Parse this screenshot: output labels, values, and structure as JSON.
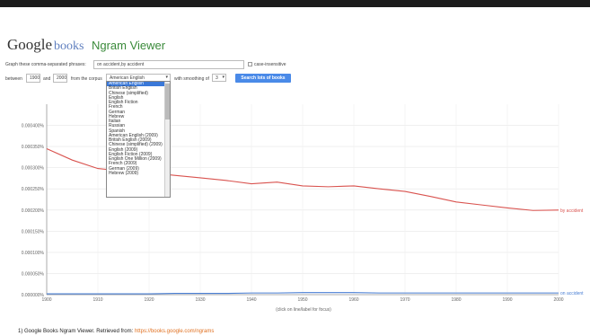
{
  "app": {
    "logo_google": "Google",
    "logo_books": "books",
    "title": "Ngram Viewer"
  },
  "form": {
    "graph_label": "Graph these comma-separated phrases:",
    "query_value": "on accident,by accident",
    "case_insensitive_label": "case-insensitive",
    "between_label": "between",
    "year_start": "1900",
    "and_label": "and",
    "year_end": "2000",
    "from_corpus_label": "from the corpus",
    "corpus_selected": "American English",
    "smoothing_label": "with smoothing of",
    "smoothing_value": "3",
    "search_button": "Search lots of books"
  },
  "corpus_options": [
    "American English",
    "British English",
    "Chinese (simplified)",
    "English",
    "English Fiction",
    "French",
    "German",
    "Hebrew",
    "Italian",
    "Russian",
    "Spanish",
    "American English (2009)",
    "British English (2009)",
    "Chinese (simplified) (2009)",
    "English (2009)",
    "English Fiction (2009)",
    "English One Million (2009)",
    "French (2009)",
    "German (2009)",
    "Hebrew (2009)"
  ],
  "chart_data": {
    "type": "line",
    "x": [
      1900,
      1905,
      1910,
      1915,
      1920,
      1925,
      1930,
      1935,
      1940,
      1945,
      1950,
      1955,
      1960,
      1965,
      1970,
      1975,
      1980,
      1985,
      1990,
      1995,
      2000
    ],
    "ylim": [
      0,
      4.5e-06
    ],
    "xlim": [
      1900,
      2000
    ],
    "y_ticks": [
      "0.000000%",
      "0.000050%",
      "0.000100%",
      "0.000150%",
      "0.000200%",
      "0.000250%",
      "0.000300%",
      "0.000350%",
      "0.000400%"
    ],
    "x_ticks": [
      "1900",
      "1910",
      "1920",
      "1930",
      "1940",
      "1950",
      "1960",
      "1970",
      "1980",
      "1990",
      "2000"
    ],
    "series": [
      {
        "name": "by accident",
        "color": "#d9534f",
        "values": [
          3.45e-06,
          3.18e-06,
          2.98e-06,
          2.92e-06,
          2.88e-06,
          2.82e-06,
          2.76e-06,
          2.7e-06,
          2.62e-06,
          2.66e-06,
          2.57e-06,
          2.55e-06,
          2.57e-06,
          2.5e-06,
          2.44e-06,
          2.32e-06,
          2.19e-06,
          2.12e-06,
          2.05e-06,
          1.99e-06,
          2e-06
        ]
      },
      {
        "name": "on accident",
        "color": "#4a7fd4",
        "values": [
          2e-08,
          2e-08,
          2e-08,
          2e-08,
          2e-08,
          3e-08,
          3e-08,
          3e-08,
          4e-08,
          4e-08,
          5e-08,
          5e-08,
          5e-08,
          4e-08,
          4e-08,
          4e-08,
          4e-08,
          4e-08,
          4e-08,
          4e-08,
          4e-08
        ]
      }
    ],
    "xlabel": "(click on line/label for focus)",
    "grid": true
  },
  "footnote": {
    "text": "1) Google Books Ngram Viewer. Retrieved from: ",
    "link": "https://books.google.com/ngrams"
  }
}
